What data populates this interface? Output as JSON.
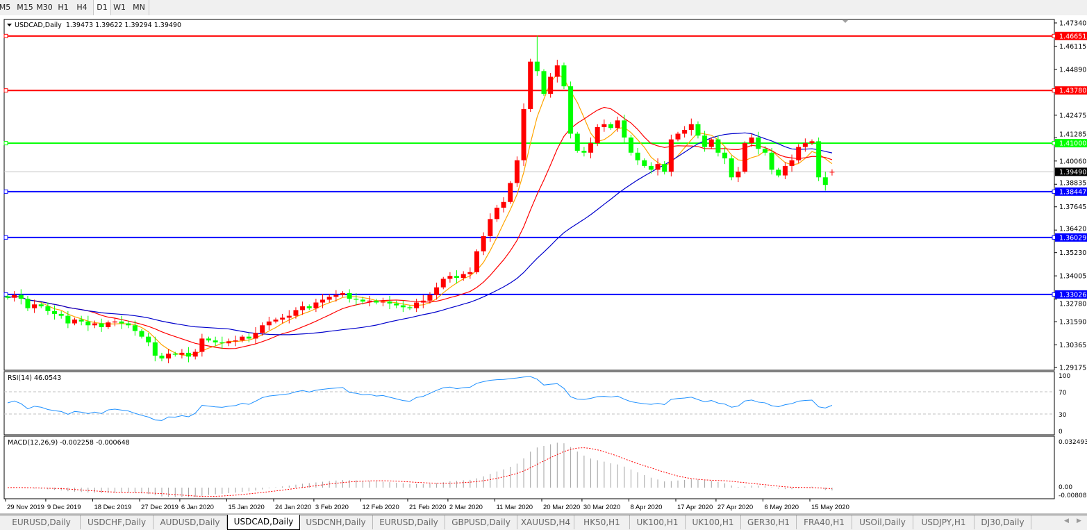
{
  "toolbar": {
    "timeframes": [
      "M5",
      "M15",
      "M30",
      "H1",
      "H4",
      "D1",
      "W1",
      "MN"
    ],
    "active": "D1"
  },
  "main": {
    "symbol_label": "USDCAD,Daily",
    "ohlc_text": "1.39473 1.39622 1.39294 1.39490",
    "current_price": "1.39490"
  },
  "rsi": {
    "label": "RSI(14) 46.0543",
    "levels": [
      "100",
      "70",
      "30",
      "0"
    ]
  },
  "macd": {
    "label": "MACD(12,26,9) -0.002258 -0.000648",
    "axis": [
      "0.032493",
      "0.00",
      "-0.008086"
    ]
  },
  "tabs": [
    "EURUSD,Daily",
    "USDCHF,Daily",
    "AUDUSD,Daily",
    "USDCAD,Daily",
    "USDCNH,Daily",
    "EURUSD,Daily",
    "GBPUSD,Daily",
    "XAUUSD,H4",
    "HK50,H1",
    "UK100,H1",
    "UK100,H1",
    "GER30,H1",
    "FRA40,H1",
    "USOil,Daily",
    "USDJPY,H1",
    "DJ30,Daily"
  ],
  "active_tab": "USDCAD,Daily",
  "colors": {
    "bull_candle": "#ff0000",
    "bear_candle": "#00ff00",
    "ma_fast": "#ffa500",
    "ma_mid": "#ff0000",
    "ma_slow": "#0000cc",
    "rsi_line": "#1e90ff",
    "macd_hist": "#a0a0a0",
    "macd_signal": "#ff0000"
  },
  "chart_data": {
    "type": "candlestick",
    "symbol": "USDCAD",
    "timeframe": "Daily",
    "ylim": [
      1.29175,
      1.4734
    ],
    "y_ticks": [
      "1.47340",
      "1.46115",
      "1.44890",
      "1.42475",
      "1.41285",
      "1.40060",
      "1.38835",
      "1.37645",
      "1.36420",
      "1.35230",
      "1.34005",
      "1.32780",
      "1.31590",
      "1.30365",
      "1.29175"
    ],
    "x_ticks": [
      {
        "label": "29 Nov 2019",
        "bar": 0
      },
      {
        "label": "9 Dec 2019",
        "bar": 6
      },
      {
        "label": "18 Dec 2019",
        "bar": 13
      },
      {
        "label": "27 Dec 2019",
        "bar": 20
      },
      {
        "label": "6 Jan 2020",
        "bar": 26
      },
      {
        "label": "15 Jan 2020",
        "bar": 33
      },
      {
        "label": "24 Jan 2020",
        "bar": 40
      },
      {
        "label": "3 Feb 2020",
        "bar": 46
      },
      {
        "label": "12 Feb 2020",
        "bar": 53
      },
      {
        "label": "21 Feb 2020",
        "bar": 60
      },
      {
        "label": "2 Mar 2020",
        "bar": 66
      },
      {
        "label": "11 Mar 2020",
        "bar": 73
      },
      {
        "label": "20 Mar 2020",
        "bar": 80
      },
      {
        "label": "30 Mar 2020",
        "bar": 86
      },
      {
        "label": "8 Apr 2020",
        "bar": 93
      },
      {
        "label": "17 Apr 2020",
        "bar": 100
      },
      {
        "label": "27 Apr 2020",
        "bar": 106
      },
      {
        "label": "6 May 2020",
        "bar": 113
      },
      {
        "label": "15 May 2020",
        "bar": 120
      }
    ],
    "close": [
      1.3285,
      1.33,
      1.328,
      1.323,
      1.325,
      1.324,
      1.3215,
      1.32,
      1.319,
      1.315,
      1.317,
      1.316,
      1.314,
      1.315,
      1.313,
      1.3155,
      1.316,
      1.315,
      1.314,
      1.311,
      1.308,
      1.305,
      1.298,
      1.2965,
      1.299,
      1.2985,
      1.2995,
      1.2975,
      1.3,
      1.307,
      1.306,
      1.305,
      1.3045,
      1.3055,
      1.306,
      1.308,
      1.307,
      1.31,
      1.314,
      1.316,
      1.317,
      1.318,
      1.319,
      1.322,
      1.324,
      1.323,
      1.326,
      1.3275,
      1.329,
      1.33,
      1.331,
      1.328,
      1.3275,
      1.3265,
      1.327,
      1.326,
      1.3265,
      1.3255,
      1.3245,
      1.3235,
      1.323,
      1.326,
      1.327,
      1.33,
      1.334,
      1.3385,
      1.34,
      1.339,
      1.341,
      1.342,
      1.353,
      1.361,
      1.37,
      1.376,
      1.379,
      1.389,
      1.401,
      1.428,
      1.453,
      1.448,
      1.436,
      1.445,
      1.451,
      1.44,
      1.415,
      1.406,
      1.405,
      1.41,
      1.4185,
      1.42,
      1.418,
      1.422,
      1.413,
      1.405,
      1.401,
      1.398,
      1.396,
      1.399,
      1.395,
      1.412,
      1.415,
      1.417,
      1.42,
      1.414,
      1.408,
      1.412,
      1.405,
      1.402,
      1.392,
      1.395,
      1.41,
      1.413,
      1.407,
      1.405,
      1.396,
      1.393,
      1.398,
      1.401,
      1.408,
      1.41,
      1.411,
      1.392,
      1.388,
      1.3949
    ],
    "last_bar": {
      "open": 1.39473,
      "high": 1.39622,
      "low": 1.39294,
      "close": 1.3949
    },
    "peak": {
      "bar": 79,
      "high": 1.4667
    },
    "moving_averages": [
      "fast",
      "mid",
      "slow"
    ],
    "horizontal_lines": [
      {
        "price": "1.46651",
        "color": "#ff0000"
      },
      {
        "price": "1.43780",
        "color": "#ff0000"
      },
      {
        "price": "1.41000",
        "color": "#00ff00"
      },
      {
        "price": "1.38447",
        "color": "#0000ff"
      },
      {
        "price": "1.36029",
        "color": "#0000ff"
      },
      {
        "price": "1.33026",
        "color": "#0000ff"
      }
    ],
    "rsi_period": 14,
    "rsi_levels": [
      30,
      70
    ],
    "macd_params": [
      12,
      26,
      9
    ]
  }
}
